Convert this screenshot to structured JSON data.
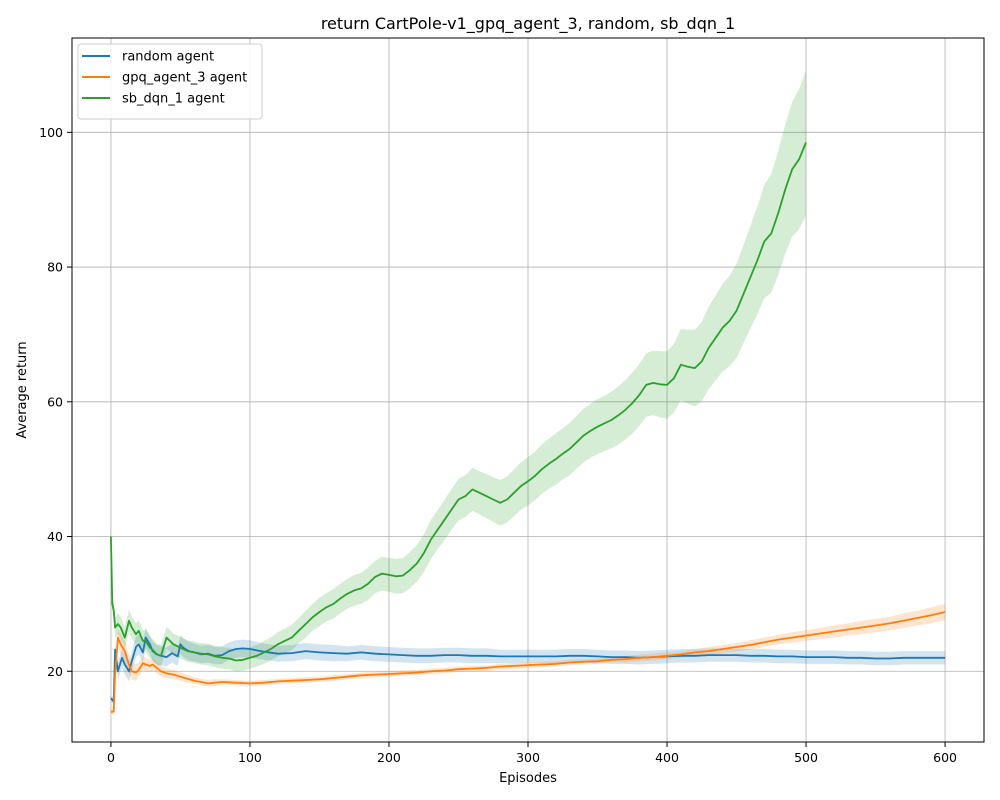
{
  "chart_data": {
    "type": "line",
    "title": "return CartPole-v1_gpq_agent_3, random, sb_dqn_1",
    "xlabel": "Episodes",
    "ylabel": "Average return",
    "xlim": [
      -28,
      628
    ],
    "ylim": [
      9.5,
      114
    ],
    "xticks": [
      0,
      100,
      200,
      300,
      400,
      500,
      600
    ],
    "yticks": [
      20,
      40,
      60,
      80,
      100
    ],
    "grid": true,
    "legend_position": "top-left",
    "series": [
      {
        "name": "random agent",
        "color": "#1f77b4",
        "band_color": "#1f77b4",
        "x": [
          0,
          2,
          3,
          5,
          8,
          10,
          13,
          15,
          18,
          20,
          23,
          25,
          28,
          30,
          33,
          36,
          40,
          44,
          48,
          50,
          52,
          56,
          60,
          65,
          70,
          75,
          80,
          85,
          90,
          95,
          100,
          110,
          120,
          130,
          140,
          150,
          160,
          170,
          180,
          190,
          200,
          210,
          220,
          230,
          240,
          250,
          260,
          270,
          280,
          290,
          300,
          310,
          320,
          330,
          340,
          350,
          360,
          370,
          380,
          390,
          400,
          410,
          420,
          430,
          440,
          450,
          460,
          470,
          480,
          490,
          500,
          510,
          520,
          530,
          540,
          550,
          560,
          570,
          580,
          590,
          600
        ],
        "y": [
          16.0,
          15.5,
          23.2,
          20.0,
          22.0,
          21.0,
          20.0,
          21.5,
          23.6,
          24.0,
          22.8,
          25.0,
          24.0,
          23.0,
          22.5,
          22.3,
          22.1,
          22.7,
          22.2,
          24.0,
          23.5,
          23.0,
          22.8,
          22.5,
          22.6,
          22.3,
          22.4,
          23.0,
          23.3,
          23.4,
          23.3,
          22.9,
          22.6,
          22.7,
          23.0,
          22.8,
          22.7,
          22.6,
          22.8,
          22.6,
          22.5,
          22.4,
          22.3,
          22.3,
          22.4,
          22.4,
          22.3,
          22.3,
          22.2,
          22.2,
          22.2,
          22.2,
          22.2,
          22.3,
          22.3,
          22.2,
          22.1,
          22.1,
          22.0,
          22.1,
          22.2,
          22.3,
          22.3,
          22.4,
          22.4,
          22.4,
          22.3,
          22.3,
          22.2,
          22.2,
          22.1,
          22.1,
          22.1,
          22.0,
          22.0,
          21.9,
          21.9,
          22.0,
          22.0,
          22.0,
          22.0
        ],
        "band": [
          0.4,
          0.6,
          1.0,
          1.3,
          1.4,
          1.5,
          1.5,
          1.5,
          1.5,
          1.5,
          1.5,
          1.5,
          1.4,
          1.4,
          1.4,
          1.4,
          1.4,
          1.4,
          1.4,
          1.4,
          1.4,
          1.4,
          1.3,
          1.3,
          1.3,
          1.3,
          1.3,
          1.3,
          1.3,
          1.3,
          1.3,
          1.2,
          1.2,
          1.2,
          1.2,
          1.2,
          1.2,
          1.1,
          1.1,
          1.1,
          1.1,
          1.1,
          1.1,
          1.1,
          1.1,
          1.1,
          1.1,
          1.1,
          1.0,
          1.0,
          1.0,
          1.0,
          1.0,
          1.0,
          1.0,
          1.0,
          1.0,
          1.0,
          1.0,
          1.0,
          1.0,
          1.0,
          1.0,
          1.0,
          1.0,
          1.0,
          1.0,
          1.0,
          1.0,
          1.0,
          1.0,
          1.0,
          1.0,
          1.0,
          1.0,
          1.0,
          1.0,
          1.0,
          1.0,
          1.0,
          1.0
        ]
      },
      {
        "name": "gpq_agent_3 agent",
        "color": "#ff7f0e",
        "band_color": "#ff7f0e",
        "x": [
          0,
          2,
          3,
          5,
          7,
          10,
          13,
          15,
          18,
          20,
          23,
          25,
          28,
          30,
          33,
          36,
          40,
          45,
          50,
          55,
          60,
          65,
          70,
          75,
          80,
          90,
          100,
          110,
          120,
          130,
          140,
          150,
          160,
          170,
          180,
          190,
          200,
          210,
          220,
          230,
          240,
          250,
          260,
          270,
          280,
          290,
          300,
          310,
          320,
          330,
          340,
          350,
          360,
          370,
          380,
          390,
          400,
          410,
          420,
          430,
          440,
          450,
          460,
          470,
          480,
          490,
          500,
          510,
          520,
          530,
          540,
          550,
          560,
          570,
          580,
          590,
          600
        ],
        "y": [
          14.0,
          14.0,
          19.5,
          25.0,
          24.0,
          23.0,
          21.0,
          20.0,
          19.8,
          20.2,
          21.2,
          21.0,
          20.8,
          21.0,
          20.5,
          20.0,
          19.7,
          19.5,
          19.2,
          18.9,
          18.6,
          18.4,
          18.2,
          18.3,
          18.4,
          18.3,
          18.2,
          18.3,
          18.5,
          18.6,
          18.7,
          18.8,
          19.0,
          19.2,
          19.4,
          19.5,
          19.6,
          19.7,
          19.8,
          20.0,
          20.1,
          20.3,
          20.4,
          20.5,
          20.7,
          20.8,
          20.9,
          21.0,
          21.1,
          21.3,
          21.4,
          21.5,
          21.7,
          21.8,
          22.0,
          22.1,
          22.3,
          22.5,
          22.8,
          23.0,
          23.3,
          23.6,
          23.9,
          24.3,
          24.7,
          25.0,
          25.3,
          25.6,
          25.9,
          26.2,
          26.5,
          26.8,
          27.1,
          27.5,
          27.9,
          28.3,
          28.8
        ],
        "band": [
          0.3,
          0.5,
          1.0,
          1.4,
          1.5,
          1.5,
          1.4,
          1.3,
          1.2,
          1.1,
          1.0,
          1.0,
          0.9,
          0.9,
          0.8,
          0.8,
          0.7,
          0.7,
          0.6,
          0.6,
          0.5,
          0.5,
          0.5,
          0.5,
          0.4,
          0.4,
          0.4,
          0.4,
          0.4,
          0.4,
          0.4,
          0.4,
          0.4,
          0.4,
          0.4,
          0.4,
          0.4,
          0.4,
          0.4,
          0.4,
          0.4,
          0.4,
          0.4,
          0.4,
          0.4,
          0.4,
          0.4,
          0.4,
          0.4,
          0.4,
          0.4,
          0.4,
          0.4,
          0.5,
          0.5,
          0.5,
          0.5,
          0.5,
          0.5,
          0.6,
          0.6,
          0.6,
          0.7,
          0.7,
          0.7,
          0.8,
          0.8,
          0.8,
          0.9,
          0.9,
          1.0,
          1.0,
          1.0,
          1.1,
          1.1,
          1.2,
          1.2
        ]
      },
      {
        "name": "sb_dqn_1 agent",
        "color": "#2ca02c",
        "band_color": "#2ca02c",
        "x": [
          0,
          1,
          2,
          3,
          5,
          7,
          10,
          13,
          15,
          18,
          20,
          23,
          25,
          28,
          30,
          33,
          36,
          40,
          45,
          50,
          55,
          60,
          65,
          70,
          75,
          80,
          85,
          90,
          95,
          100,
          105,
          110,
          115,
          120,
          125,
          130,
          135,
          140,
          145,
          150,
          155,
          160,
          165,
          170,
          175,
          180,
          185,
          190,
          195,
          200,
          205,
          210,
          215,
          220,
          225,
          230,
          235,
          240,
          245,
          250,
          255,
          260,
          265,
          270,
          275,
          280,
          285,
          290,
          295,
          300,
          305,
          310,
          315,
          320,
          325,
          330,
          335,
          340,
          345,
          350,
          355,
          360,
          365,
          370,
          375,
          380,
          385,
          390,
          395,
          400,
          405,
          410,
          415,
          420,
          425,
          430,
          435,
          440,
          445,
          450,
          455,
          460,
          465,
          470,
          475,
          480,
          485,
          490,
          495,
          500
        ],
        "y": [
          40.0,
          30.0,
          29.0,
          26.5,
          27.0,
          26.5,
          25.0,
          27.5,
          26.5,
          25.5,
          26.0,
          24.5,
          24.5,
          23.5,
          23.2,
          22.5,
          22.3,
          25.0,
          24.0,
          23.5,
          23.0,
          22.8,
          22.6,
          22.5,
          22.2,
          22.0,
          21.9,
          21.6,
          21.7,
          22.0,
          22.3,
          22.8,
          23.3,
          24.0,
          24.5,
          25.0,
          26.0,
          27.0,
          28.0,
          28.8,
          29.5,
          30.0,
          30.8,
          31.5,
          32.0,
          32.3,
          33.0,
          34.0,
          34.5,
          34.3,
          34.1,
          34.2,
          35.0,
          36.0,
          37.5,
          39.5,
          41.0,
          42.5,
          44.0,
          45.5,
          46.0,
          47.0,
          46.5,
          46.0,
          45.5,
          45.0,
          45.5,
          46.5,
          47.5,
          48.2,
          49.0,
          50.0,
          50.8,
          51.5,
          52.3,
          53.0,
          54.0,
          55.0,
          55.7,
          56.3,
          56.8,
          57.3,
          58.0,
          58.8,
          59.8,
          61.0,
          62.5,
          62.8,
          62.6,
          62.5,
          63.5,
          65.5,
          65.2,
          65.0,
          66.0,
          68.0,
          69.5,
          71.0,
          72.0,
          73.5,
          76.0,
          78.5,
          81.0,
          83.8,
          85.0,
          88.0,
          91.5,
          94.5,
          96.0,
          98.5
        ],
        "band": [
          0.5,
          1.0,
          1.3,
          1.5,
          1.6,
          1.6,
          1.6,
          1.6,
          1.6,
          1.6,
          1.6,
          1.6,
          1.6,
          1.6,
          1.6,
          1.6,
          1.6,
          1.6,
          1.6,
          1.6,
          1.6,
          1.6,
          1.6,
          1.6,
          1.6,
          1.6,
          1.6,
          1.6,
          1.6,
          1.6,
          1.6,
          1.7,
          1.7,
          1.8,
          1.8,
          1.9,
          1.9,
          2.0,
          2.0,
          2.1,
          2.1,
          2.2,
          2.2,
          2.2,
          2.3,
          2.3,
          2.4,
          2.4,
          2.5,
          2.5,
          2.6,
          2.6,
          2.7,
          2.7,
          2.8,
          2.9,
          2.9,
          3.0,
          3.0,
          3.1,
          3.1,
          3.2,
          3.2,
          3.3,
          3.3,
          3.4,
          3.4,
          3.5,
          3.5,
          3.6,
          3.6,
          3.7,
          3.7,
          3.8,
          3.8,
          3.9,
          3.9,
          4.0,
          4.0,
          4.1,
          4.1,
          4.2,
          4.3,
          4.4,
          4.5,
          4.6,
          4.7,
          4.8,
          4.9,
          5.0,
          5.1,
          5.3,
          5.5,
          5.7,
          5.9,
          6.1,
          6.3,
          6.5,
          6.7,
          7.0,
          7.3,
          7.6,
          8.0,
          8.4,
          8.8,
          9.2,
          9.6,
          10.0,
          10.4,
          10.8
        ]
      }
    ]
  }
}
